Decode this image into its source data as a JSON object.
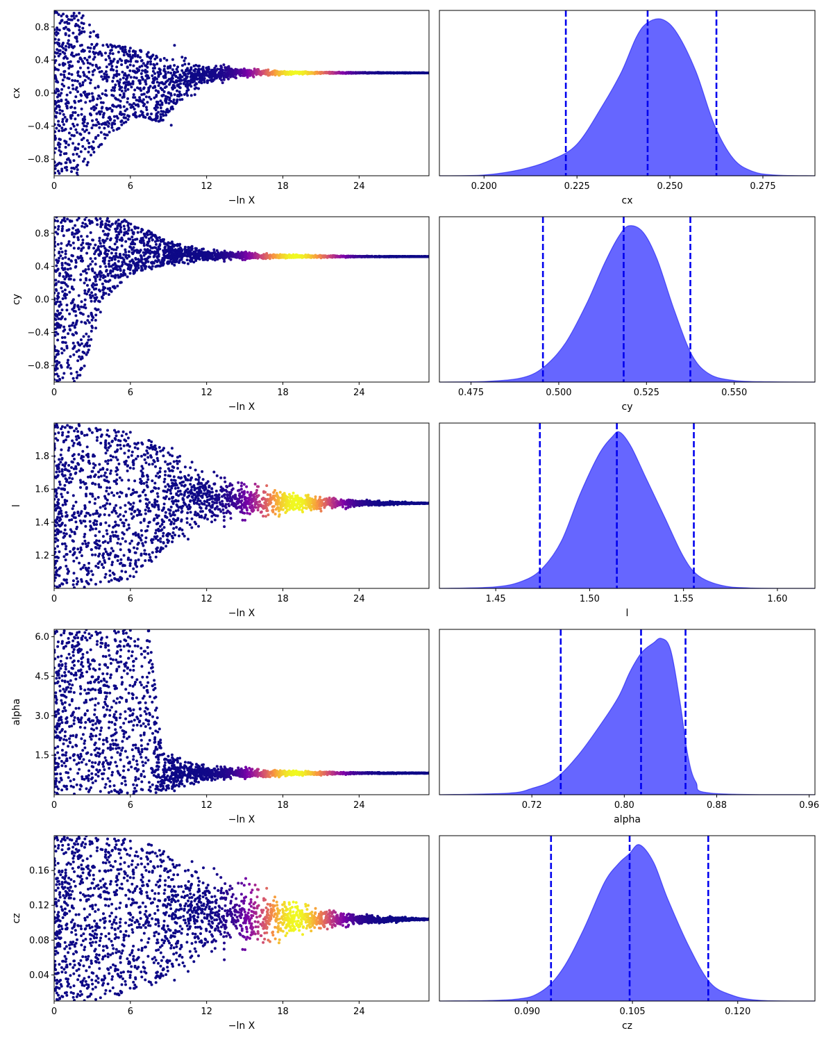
{
  "chart_data": [
    {
      "type": "scatter",
      "panel": "trace",
      "parameter": "cx",
      "xlabel": "−ln X",
      "ylabel": "cx",
      "xlim": [
        0,
        29.5
      ],
      "ylim": [
        -1.0,
        1.0
      ],
      "xticks": [
        0,
        6,
        12,
        18,
        24
      ],
      "xtick_labels": [
        "0",
        "6",
        "12",
        "18",
        "24"
      ],
      "yticks": [
        -0.8,
        -0.4,
        0.0,
        0.4,
        0.8
      ],
      "ytick_labels": [
        "−0.8",
        "−0.4",
        "0.0",
        "0.4",
        "0.8"
      ],
      "colormap": [
        "#0d0887",
        "#7e03a8",
        "#cc4778",
        "#f89540",
        "#f0f921"
      ],
      "converged_value": 0.244,
      "samples_by_lnx": [
        {
          "x": 0,
          "y_min": -1.0,
          "y_max": 1.0
        },
        {
          "x": 2,
          "y_min": -1.0,
          "y_max": 1.0
        },
        {
          "x": 4,
          "y_min": -0.6,
          "y_max": 0.6
        },
        {
          "x": 6,
          "y_min": -0.3,
          "y_max": 0.55
        },
        {
          "x": 8.5,
          "y_min": -0.35,
          "y_max": 0.45
        },
        {
          "x": 12,
          "y_min": 0.12,
          "y_max": 0.35
        },
        {
          "x": 15,
          "y_min": 0.2,
          "y_max": 0.29
        },
        {
          "x": 18,
          "y_min": 0.225,
          "y_max": 0.265
        },
        {
          "x": 21,
          "y_min": 0.235,
          "y_max": 0.255
        },
        {
          "x": 24,
          "y_min": 0.24,
          "y_max": 0.25
        },
        {
          "x": 29.5,
          "y_min": 0.243,
          "y_max": 0.245
        }
      ],
      "peak_weight_x": 19
    },
    {
      "type": "area",
      "panel": "posterior",
      "parameter": "cx",
      "xlabel": "cx",
      "ylabel": "",
      "xlim": [
        0.188,
        0.289
      ],
      "xticks": [
        0.2,
        0.225,
        0.25,
        0.275
      ],
      "xtick_labels": [
        "0.200",
        "0.225",
        "0.250",
        "0.275"
      ],
      "fill_color": "#6666ff",
      "line_color": "#0000ee",
      "quantiles": [
        0.222,
        0.244,
        0.2625
      ],
      "density": [
        {
          "x": 0.188,
          "y": 0
        },
        {
          "x": 0.2,
          "y": 0.005
        },
        {
          "x": 0.21,
          "y": 0.04
        },
        {
          "x": 0.218,
          "y": 0.1
        },
        {
          "x": 0.225,
          "y": 0.2
        },
        {
          "x": 0.232,
          "y": 0.45
        },
        {
          "x": 0.237,
          "y": 0.66
        },
        {
          "x": 0.241,
          "y": 0.88
        },
        {
          "x": 0.244,
          "y": 0.97
        },
        {
          "x": 0.248,
          "y": 0.99
        },
        {
          "x": 0.252,
          "y": 0.9
        },
        {
          "x": 0.257,
          "y": 0.66
        },
        {
          "x": 0.262,
          "y": 0.32
        },
        {
          "x": 0.267,
          "y": 0.11
        },
        {
          "x": 0.272,
          "y": 0.03
        },
        {
          "x": 0.278,
          "y": 0.005
        },
        {
          "x": 0.289,
          "y": 0
        }
      ]
    },
    {
      "type": "scatter",
      "panel": "trace",
      "parameter": "cy",
      "xlabel": "−ln X",
      "ylabel": "cy",
      "xlim": [
        0,
        29.5
      ],
      "ylim": [
        -1.0,
        1.0
      ],
      "xticks": [
        0,
        6,
        12,
        18,
        24
      ],
      "xtick_labels": [
        "0",
        "6",
        "12",
        "18",
        "24"
      ],
      "yticks": [
        -0.8,
        -0.4,
        0.0,
        0.4,
        0.8
      ],
      "ytick_labels": [
        "−0.8",
        "−0.4",
        "0.0",
        "0.4",
        "0.8"
      ],
      "colormap": [
        "#0d0887",
        "#7e03a8",
        "#cc4778",
        "#f89540",
        "#f0f921"
      ],
      "converged_value": 0.518,
      "samples_by_lnx": [
        {
          "x": 0,
          "y_min": -1.0,
          "y_max": 1.0
        },
        {
          "x": 2,
          "y_min": -1.0,
          "y_max": 1.0
        },
        {
          "x": 4,
          "y_min": 0.0,
          "y_max": 1.0
        },
        {
          "x": 6,
          "y_min": 0.3,
          "y_max": 0.95
        },
        {
          "x": 9,
          "y_min": 0.42,
          "y_max": 0.7
        },
        {
          "x": 12,
          "y_min": 0.46,
          "y_max": 0.6
        },
        {
          "x": 16,
          "y_min": 0.495,
          "y_max": 0.55
        },
        {
          "x": 20,
          "y_min": 0.505,
          "y_max": 0.535
        },
        {
          "x": 24,
          "y_min": 0.512,
          "y_max": 0.524
        },
        {
          "x": 29.5,
          "y_min": 0.517,
          "y_max": 0.519
        }
      ],
      "peak_weight_x": 19
    },
    {
      "type": "area",
      "panel": "posterior",
      "parameter": "cy",
      "xlabel": "cy",
      "ylabel": "",
      "xlim": [
        0.466,
        0.573
      ],
      "xticks": [
        0.475,
        0.5,
        0.525,
        0.55
      ],
      "xtick_labels": [
        "0.475",
        "0.500",
        "0.525",
        "0.550"
      ],
      "fill_color": "#6666ff",
      "line_color": "#0000ee",
      "quantiles": [
        0.4955,
        0.5185,
        0.5375
      ],
      "density": [
        {
          "x": 0.466,
          "y": 0
        },
        {
          "x": 0.48,
          "y": 0.005
        },
        {
          "x": 0.49,
          "y": 0.03
        },
        {
          "x": 0.496,
          "y": 0.1
        },
        {
          "x": 0.502,
          "y": 0.25
        },
        {
          "x": 0.508,
          "y": 0.5
        },
        {
          "x": 0.513,
          "y": 0.75
        },
        {
          "x": 0.517,
          "y": 0.92
        },
        {
          "x": 0.52,
          "y": 0.99
        },
        {
          "x": 0.524,
          "y": 0.95
        },
        {
          "x": 0.528,
          "y": 0.78
        },
        {
          "x": 0.533,
          "y": 0.45
        },
        {
          "x": 0.538,
          "y": 0.17
        },
        {
          "x": 0.543,
          "y": 0.05
        },
        {
          "x": 0.55,
          "y": 0.01
        },
        {
          "x": 0.56,
          "y": 0.002
        },
        {
          "x": 0.573,
          "y": 0
        }
      ]
    },
    {
      "type": "scatter",
      "panel": "trace",
      "parameter": "l",
      "xlabel": "−ln X",
      "ylabel": "l",
      "xlim": [
        0,
        29.5
      ],
      "ylim": [
        1.0,
        2.0
      ],
      "xticks": [
        0,
        6,
        12,
        18,
        24
      ],
      "xtick_labels": [
        "0",
        "6",
        "12",
        "18",
        "24"
      ],
      "yticks": [
        1.2,
        1.4,
        1.6,
        1.8
      ],
      "ytick_labels": [
        "1.2",
        "1.4",
        "1.6",
        "1.8"
      ],
      "colormap": [
        "#0d0887",
        "#7e03a8",
        "#cc4778",
        "#f89540",
        "#f0f921"
      ],
      "converged_value": 1.515,
      "samples_by_lnx": [
        {
          "x": 0,
          "y_min": 1.0,
          "y_max": 2.0
        },
        {
          "x": 2,
          "y_min": 1.0,
          "y_max": 2.0
        },
        {
          "x": 6,
          "y_min": 1.05,
          "y_max": 1.95
        },
        {
          "x": 9,
          "y_min": 1.25,
          "y_max": 1.85
        },
        {
          "x": 12,
          "y_min": 1.38,
          "y_max": 1.7
        },
        {
          "x": 15,
          "y_min": 1.43,
          "y_max": 1.62
        },
        {
          "x": 18,
          "y_min": 1.46,
          "y_max": 1.58
        },
        {
          "x": 21,
          "y_min": 1.48,
          "y_max": 1.55
        },
        {
          "x": 25,
          "y_min": 1.5,
          "y_max": 1.53
        },
        {
          "x": 29.5,
          "y_min": 1.514,
          "y_max": 1.516
        }
      ],
      "peak_weight_x": 19
    },
    {
      "type": "area",
      "panel": "posterior",
      "parameter": "l",
      "xlabel": "l",
      "ylabel": "",
      "xlim": [
        1.42,
        1.62
      ],
      "xticks": [
        1.45,
        1.5,
        1.55,
        1.6
      ],
      "xtick_labels": [
        "1.45",
        "1.50",
        "1.55",
        "1.60"
      ],
      "fill_color": "#6666ff",
      "line_color": "#0000ee",
      "quantiles": [
        1.4735,
        1.5145,
        1.5555
      ],
      "density": [
        {
          "x": 1.42,
          "y": 0
        },
        {
          "x": 1.45,
          "y": 0.01
        },
        {
          "x": 1.465,
          "y": 0.05
        },
        {
          "x": 1.475,
          "y": 0.13
        },
        {
          "x": 1.485,
          "y": 0.3
        },
        {
          "x": 1.495,
          "y": 0.6
        },
        {
          "x": 1.505,
          "y": 0.85
        },
        {
          "x": 1.512,
          "y": 0.96
        },
        {
          "x": 1.516,
          "y": 0.99
        },
        {
          "x": 1.522,
          "y": 0.9
        },
        {
          "x": 1.53,
          "y": 0.7
        },
        {
          "x": 1.54,
          "y": 0.45
        },
        {
          "x": 1.55,
          "y": 0.2
        },
        {
          "x": 1.558,
          "y": 0.08
        },
        {
          "x": 1.57,
          "y": 0.02
        },
        {
          "x": 1.585,
          "y": 0.003
        },
        {
          "x": 1.62,
          "y": 0
        }
      ]
    },
    {
      "type": "scatter",
      "panel": "trace",
      "parameter": "alpha",
      "xlabel": "−ln X",
      "ylabel": "alpha",
      "xlim": [
        0,
        29.5
      ],
      "ylim": [
        0.0,
        6.28
      ],
      "xticks": [
        0,
        6,
        12,
        18,
        24
      ],
      "xtick_labels": [
        "0",
        "6",
        "12",
        "18",
        "24"
      ],
      "yticks": [
        1.5,
        3.0,
        4.5,
        6.0
      ],
      "ytick_labels": [
        "1.5",
        "3.0",
        "4.5",
        "6.0"
      ],
      "colormap": [
        "#0d0887",
        "#7e03a8",
        "#cc4778",
        "#f89540",
        "#f0f921"
      ],
      "converged_value": 0.82,
      "samples_by_lnx": [
        {
          "x": 0,
          "y_min": 0.0,
          "y_max": 6.28
        },
        {
          "x": 4,
          "y_min": 0.0,
          "y_max": 6.28
        },
        {
          "x": 7.5,
          "y_min": 0.0,
          "y_max": 6.28
        },
        {
          "x": 8.5,
          "y_min": 0.1,
          "y_max": 1.6
        },
        {
          "x": 12,
          "y_min": 0.5,
          "y_max": 1.1
        },
        {
          "x": 16,
          "y_min": 0.68,
          "y_max": 0.95
        },
        {
          "x": 20,
          "y_min": 0.75,
          "y_max": 0.88
        },
        {
          "x": 24,
          "y_min": 0.79,
          "y_max": 0.85
        },
        {
          "x": 29.5,
          "y_min": 0.81,
          "y_max": 0.83
        }
      ],
      "peak_weight_x": 19
    },
    {
      "type": "area",
      "panel": "posterior",
      "parameter": "alpha",
      "xlabel": "alpha",
      "ylabel": "",
      "xlim": [
        0.64,
        0.965
      ],
      "xticks": [
        0.72,
        0.8,
        0.88,
        0.96
      ],
      "xtick_labels": [
        "0.72",
        "0.80",
        "0.88",
        "0.96"
      ],
      "fill_color": "#6666ff",
      "line_color": "#0000ee",
      "quantiles": [
        0.745,
        0.8145,
        0.853
      ],
      "density": [
        {
          "x": 0.64,
          "y": 0
        },
        {
          "x": 0.7,
          "y": 0.01
        },
        {
          "x": 0.72,
          "y": 0.04
        },
        {
          "x": 0.74,
          "y": 0.1
        },
        {
          "x": 0.76,
          "y": 0.25
        },
        {
          "x": 0.78,
          "y": 0.45
        },
        {
          "x": 0.795,
          "y": 0.62
        },
        {
          "x": 0.805,
          "y": 0.78
        },
        {
          "x": 0.815,
          "y": 0.9
        },
        {
          "x": 0.825,
          "y": 0.96
        },
        {
          "x": 0.832,
          "y": 0.99
        },
        {
          "x": 0.84,
          "y": 0.92
        },
        {
          "x": 0.848,
          "y": 0.6
        },
        {
          "x": 0.855,
          "y": 0.25
        },
        {
          "x": 0.862,
          "y": 0.08
        },
        {
          "x": 0.875,
          "y": 0.01
        },
        {
          "x": 0.965,
          "y": 0
        }
      ]
    },
    {
      "type": "scatter",
      "panel": "trace",
      "parameter": "cz",
      "xlabel": "−ln X",
      "ylabel": "cz",
      "xlim": [
        0,
        29.5
      ],
      "ylim": [
        0.01,
        0.2
      ],
      "xticks": [
        0,
        6,
        12,
        18,
        24
      ],
      "xtick_labels": [
        "0",
        "6",
        "12",
        "18",
        "24"
      ],
      "yticks": [
        0.04,
        0.08,
        0.12,
        0.16
      ],
      "ytick_labels": [
        "0.04",
        "0.08",
        "0.12",
        "0.16"
      ],
      "colormap": [
        "#0d0887",
        "#7e03a8",
        "#cc4778",
        "#f89540",
        "#f0f921"
      ],
      "converged_value": 0.104,
      "samples_by_lnx": [
        {
          "x": 0,
          "y_min": 0.01,
          "y_max": 0.2
        },
        {
          "x": 4,
          "y_min": 0.01,
          "y_max": 0.2
        },
        {
          "x": 8,
          "y_min": 0.03,
          "y_max": 0.19
        },
        {
          "x": 12,
          "y_min": 0.06,
          "y_max": 0.16
        },
        {
          "x": 15,
          "y_min": 0.075,
          "y_max": 0.14
        },
        {
          "x": 18,
          "y_min": 0.085,
          "y_max": 0.125
        },
        {
          "x": 21,
          "y_min": 0.093,
          "y_max": 0.115
        },
        {
          "x": 25,
          "y_min": 0.099,
          "y_max": 0.108
        },
        {
          "x": 29.5,
          "y_min": 0.1035,
          "y_max": 0.1045
        }
      ],
      "peak_weight_x": 19
    },
    {
      "type": "area",
      "panel": "posterior",
      "parameter": "cz",
      "xlabel": "cz",
      "ylabel": "",
      "xlim": [
        0.0775,
        0.131
      ],
      "xticks": [
        0.09,
        0.105,
        0.12
      ],
      "xtick_labels": [
        "0.090",
        "0.105",
        "0.120"
      ],
      "fill_color": "#6666ff",
      "line_color": "#0000ee",
      "quantiles": [
        0.0934,
        0.1046,
        0.1158
      ],
      "density": [
        {
          "x": 0.0775,
          "y": 0
        },
        {
          "x": 0.088,
          "y": 0.01
        },
        {
          "x": 0.092,
          "y": 0.06
        },
        {
          "x": 0.095,
          "y": 0.2
        },
        {
          "x": 0.098,
          "y": 0.45
        },
        {
          "x": 0.101,
          "y": 0.75
        },
        {
          "x": 0.103,
          "y": 0.87
        },
        {
          "x": 0.1045,
          "y": 0.93
        },
        {
          "x": 0.106,
          "y": 0.99
        },
        {
          "x": 0.108,
          "y": 0.88
        },
        {
          "x": 0.11,
          "y": 0.65
        },
        {
          "x": 0.113,
          "y": 0.35
        },
        {
          "x": 0.116,
          "y": 0.12
        },
        {
          "x": 0.119,
          "y": 0.04
        },
        {
          "x": 0.123,
          "y": 0.005
        },
        {
          "x": 0.131,
          "y": 0
        }
      ]
    }
  ]
}
